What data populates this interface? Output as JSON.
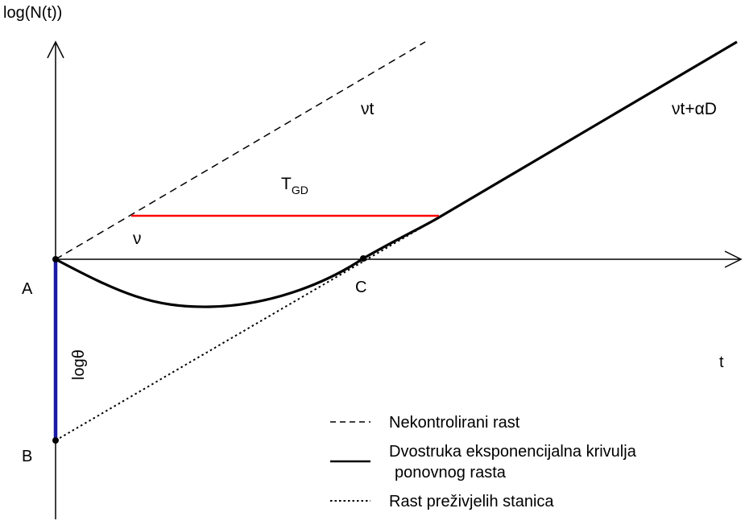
{
  "axes": {
    "y_label": "log(N(t))",
    "x_label": "t"
  },
  "curves": {
    "uncontrolled_label": "νt",
    "regrowth_label": "νt+αD",
    "slope_label": "ν"
  },
  "annotations": {
    "delay_main": "T",
    "delay_sub": "GD",
    "log_theta": "logθ"
  },
  "points": {
    "a": "A",
    "b": "B",
    "c": "C"
  },
  "legend": {
    "dashed": "Nekontrolirani rast",
    "solid_line1": "Dvostruka eksponencijalna krivulja",
    "solid_line2": "ponovnog rasta",
    "dotted": "Rast preživjelih stanica"
  },
  "colors": {
    "delay_segment": "#ff0000",
    "log_theta_segment": "#1a1aa6",
    "ink": "#000000"
  }
}
